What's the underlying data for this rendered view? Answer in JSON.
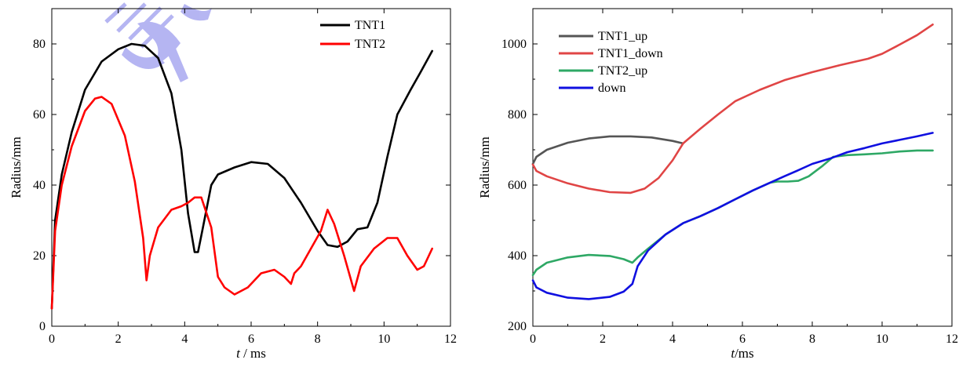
{
  "chart_data": [
    {
      "type": "line",
      "xlabel_italic": "t",
      "xlabel_rest": " / ms",
      "ylabel": "Radius/mm",
      "xlim": [
        0,
        12
      ],
      "ylim": [
        0,
        90
      ],
      "xticks": [
        0,
        2,
        4,
        6,
        8,
        10,
        12
      ],
      "yticks": [
        0,
        20,
        40,
        60,
        80
      ],
      "xtick_labels": [
        "0",
        "2",
        "4",
        "6",
        "8",
        "10",
        "12"
      ],
      "ytick_labels": [
        "0",
        "20",
        "40",
        "60",
        "80"
      ],
      "legend_position": "top-right",
      "series": [
        {
          "name": "TNT1",
          "color": "#000000",
          "points": [
            [
              0,
              5
            ],
            [
              0.1,
              30
            ],
            [
              0.3,
              43
            ],
            [
              0.6,
              55
            ],
            [
              1,
              67
            ],
            [
              1.5,
              75
            ],
            [
              2,
              78.5
            ],
            [
              2.4,
              80
            ],
            [
              2.8,
              79.5
            ],
            [
              3.2,
              76
            ],
            [
              3.6,
              66
            ],
            [
              3.9,
              50
            ],
            [
              4.1,
              32
            ],
            [
              4.3,
              21
            ],
            [
              4.4,
              21
            ],
            [
              4.55,
              28
            ],
            [
              4.8,
              40
            ],
            [
              5,
              43
            ],
            [
              5.5,
              45
            ],
            [
              6,
              46.5
            ],
            [
              6.5,
              46
            ],
            [
              7,
              42
            ],
            [
              7.5,
              35
            ],
            [
              8,
              27
            ],
            [
              8.3,
              23
            ],
            [
              8.6,
              22.5
            ],
            [
              8.9,
              24
            ],
            [
              9.2,
              27.5
            ],
            [
              9.5,
              28
            ],
            [
              9.8,
              35
            ],
            [
              10.1,
              48
            ],
            [
              10.4,
              60
            ],
            [
              10.8,
              67
            ],
            [
              11.1,
              72
            ],
            [
              11.45,
              78
            ]
          ]
        },
        {
          "name": "TNT2",
          "color": "#ff0000",
          "points": [
            [
              0,
              5
            ],
            [
              0.1,
              27
            ],
            [
              0.3,
              40
            ],
            [
              0.6,
              51
            ],
            [
              1,
              61
            ],
            [
              1.3,
              64.5
            ],
            [
              1.5,
              65
            ],
            [
              1.8,
              63
            ],
            [
              2.2,
              54
            ],
            [
              2.5,
              41
            ],
            [
              2.75,
              25
            ],
            [
              2.85,
              13
            ],
            [
              2.95,
              20
            ],
            [
              3.2,
              28
            ],
            [
              3.6,
              33
            ],
            [
              3.9,
              34
            ],
            [
              4.1,
              35
            ],
            [
              4.3,
              36.5
            ],
            [
              4.5,
              36.5
            ],
            [
              4.8,
              28
            ],
            [
              5,
              14
            ],
            [
              5.2,
              11
            ],
            [
              5.5,
              9
            ],
            [
              5.9,
              11
            ],
            [
              6.3,
              15
            ],
            [
              6.7,
              16
            ],
            [
              7,
              14
            ],
            [
              7.2,
              12
            ],
            [
              7.3,
              15
            ],
            [
              7.5,
              17
            ],
            [
              7.8,
              22
            ],
            [
              8.1,
              27
            ],
            [
              8.3,
              33
            ],
            [
              8.5,
              29
            ],
            [
              8.8,
              20
            ],
            [
              9.1,
              10
            ],
            [
              9.3,
              17
            ],
            [
              9.7,
              22
            ],
            [
              10.1,
              25
            ],
            [
              10.4,
              25
            ],
            [
              10.7,
              20
            ],
            [
              11,
              16
            ],
            [
              11.2,
              17
            ],
            [
              11.45,
              22
            ]
          ]
        }
      ]
    },
    {
      "type": "line",
      "xlabel_italic": "t",
      "xlabel_rest": "/ms",
      "ylabel": "Radius/mm",
      "xlim": [
        0,
        12
      ],
      "ylim": [
        200,
        1100
      ],
      "xticks": [
        0,
        2,
        4,
        6,
        8,
        10,
        12
      ],
      "yticks": [
        200,
        400,
        600,
        800,
        1000
      ],
      "xtick_labels": [
        "0",
        "2",
        "4",
        "6",
        "8",
        "10",
        "12"
      ],
      "ytick_labels": [
        "200",
        "400",
        "600",
        "800",
        "1000"
      ],
      "legend_position": "top-left",
      "series": [
        {
          "name": "TNT1_up",
          "color": "#555555",
          "points": [
            [
              0,
              660
            ],
            [
              0.1,
              680
            ],
            [
              0.4,
              700
            ],
            [
              1,
              720
            ],
            [
              1.6,
              732
            ],
            [
              2.2,
              738
            ],
            [
              2.8,
              738
            ],
            [
              3.4,
              735
            ],
            [
              4,
              725
            ],
            [
              4.3,
              718
            ]
          ]
        },
        {
          "name": "TNT1_down",
          "color": "#e04545",
          "points": [
            [
              0,
              658
            ],
            [
              0.1,
              640
            ],
            [
              0.4,
              625
            ],
            [
              1,
              605
            ],
            [
              1.6,
              590
            ],
            [
              2.2,
              580
            ],
            [
              2.8,
              578
            ],
            [
              3.2,
              590
            ],
            [
              3.6,
              620
            ],
            [
              4,
              670
            ],
            [
              4.3,
              718
            ],
            [
              4.8,
              760
            ],
            [
              5.3,
              800
            ],
            [
              5.8,
              838
            ],
            [
              6.5,
              870
            ],
            [
              7.2,
              897
            ],
            [
              8,
              920
            ],
            [
              8.8,
              940
            ],
            [
              9.6,
              958
            ],
            [
              10,
              972
            ],
            [
              10.5,
              998
            ],
            [
              11,
              1025
            ],
            [
              11.45,
              1055
            ]
          ]
        },
        {
          "name": "TNT2_up",
          "color": "#2ea865",
          "points": [
            [
              0,
              345
            ],
            [
              0.1,
              360
            ],
            [
              0.4,
              380
            ],
            [
              1,
              395
            ],
            [
              1.6,
              402
            ],
            [
              2.2,
              399
            ],
            [
              2.6,
              390
            ],
            [
              2.85,
              380
            ],
            [
              3,
              395
            ],
            [
              3.3,
              420
            ],
            [
              3.8,
              460
            ],
            [
              4.3,
              492
            ],
            [
              4.8,
              512
            ],
            [
              5.3,
              535
            ],
            [
              5.8,
              560
            ],
            [
              6.3,
              585
            ],
            [
              6.8,
              607
            ],
            [
              7,
              610
            ],
            [
              7.3,
              610
            ],
            [
              7.6,
              612
            ],
            [
              7.9,
              625
            ],
            [
              8.3,
              655
            ],
            [
              8.6,
              680
            ],
            [
              9,
              685
            ],
            [
              9.5,
              687
            ],
            [
              10,
              690
            ],
            [
              10.5,
              695
            ],
            [
              11,
              698
            ],
            [
              11.45,
              698
            ]
          ]
        },
        {
          "name": "down",
          "color": "#1010e0",
          "points": [
            [
              0,
              330
            ],
            [
              0.1,
              310
            ],
            [
              0.4,
              295
            ],
            [
              1,
              281
            ],
            [
              1.6,
              277
            ],
            [
              2.2,
              283
            ],
            [
              2.6,
              298
            ],
            [
              2.85,
              320
            ],
            [
              3,
              370
            ],
            [
              3.3,
              415
            ],
            [
              3.8,
              460
            ],
            [
              4.3,
              492
            ],
            [
              4.8,
              512
            ],
            [
              5.3,
              535
            ],
            [
              5.8,
              560
            ],
            [
              6.3,
              585
            ],
            [
              6.8,
              607
            ],
            [
              7.2,
              625
            ],
            [
              7.6,
              642
            ],
            [
              8,
              660
            ],
            [
              8.5,
              675
            ],
            [
              9,
              693
            ],
            [
              9.5,
              705
            ],
            [
              10,
              718
            ],
            [
              10.5,
              728
            ],
            [
              11,
              738
            ],
            [
              11.45,
              748
            ]
          ]
        }
      ]
    }
  ]
}
